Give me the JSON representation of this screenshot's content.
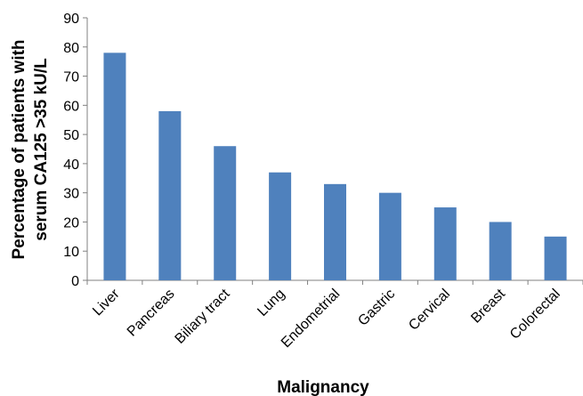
{
  "chart_data": {
    "type": "bar",
    "categories": [
      "Liver",
      "Pancreas",
      "Biliary tract",
      "Lung",
      "Endometrial",
      "Gastric",
      "Cervical",
      "Breast",
      "Colorectal"
    ],
    "values": [
      78,
      58,
      46,
      37,
      33,
      30,
      25,
      20,
      15
    ],
    "title": "",
    "xlabel": "Malignancy",
    "ylabel_lines": [
      "Percentage of patients with",
      "serum CA125 >35 kU/L"
    ],
    "ylim": [
      0,
      90
    ],
    "yticks": [
      "0",
      "10",
      "20",
      "30",
      "40",
      "50",
      "60",
      "70",
      "80",
      "90"
    ],
    "grid": false,
    "legend": "none",
    "bar_color": "#4f81bd",
    "axis_color": "#808080"
  }
}
